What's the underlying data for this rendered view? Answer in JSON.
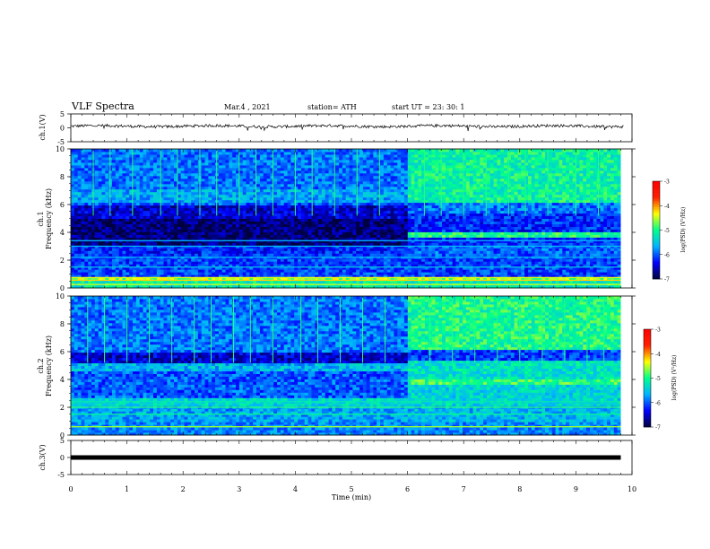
{
  "header": {
    "title": "VLF Spectra",
    "date": "Mar.4 , 2021",
    "station": "station= ATH",
    "start": "start UT = 23: 30: 1"
  },
  "chart_data": [
    {
      "type": "line",
      "panel": "ch.1 waveform",
      "ylabel": "ch.1(V)",
      "yticks": [
        "5",
        "0",
        "-5"
      ],
      "ylim": [
        -5,
        5
      ],
      "xlim": [
        0,
        10
      ],
      "baseline": 0.6,
      "noise_amplitude": 0.5
    },
    {
      "type": "heatmap",
      "panel": "ch.1 spectrogram",
      "ylabel_line1": "ch.1",
      "ylabel_line2": "Frequency (kHz)",
      "yticks": [
        "0",
        "2",
        "4",
        "6",
        "8",
        "10"
      ],
      "ylim": [
        0,
        10
      ],
      "xlim": [
        0,
        9.8
      ],
      "colorbar_label": "log(PSD) (V²/Hz)",
      "colorbar_ticks": [
        "-3",
        "-4",
        "-5",
        "-6",
        "-7"
      ],
      "clim": [
        -7,
        -3
      ],
      "bands_before_6min": [
        {
          "f0": 0.0,
          "f1": 0.5,
          "v": -5.2
        },
        {
          "f0": 0.5,
          "f1": 0.8,
          "v": -4.6
        },
        {
          "f0": 0.8,
          "f1": 2.3,
          "v": -6.1
        },
        {
          "f0": 2.3,
          "f1": 3.1,
          "v": -6.2
        },
        {
          "f0": 3.1,
          "f1": 5.0,
          "v": -6.8
        },
        {
          "f0": 5.0,
          "f1": 5.9,
          "v": -6.5
        },
        {
          "f0": 5.9,
          "f1": 6.2,
          "v": -6.0
        },
        {
          "f0": 6.2,
          "f1": 7.2,
          "v": -5.7
        },
        {
          "f0": 7.2,
          "f1": 10.0,
          "v": -5.9
        }
      ],
      "bands_after_6min": [
        {
          "f0": 0.0,
          "f1": 0.5,
          "v": -5.2
        },
        {
          "f0": 0.5,
          "f1": 0.8,
          "v": -4.6
        },
        {
          "f0": 0.8,
          "f1": 2.3,
          "v": -6.1
        },
        {
          "f0": 2.3,
          "f1": 3.1,
          "v": -6.0
        },
        {
          "f0": 3.1,
          "f1": 3.6,
          "v": -6.2
        },
        {
          "f0": 3.6,
          "f1": 4.0,
          "v": -5.0
        },
        {
          "f0": 4.0,
          "f1": 5.4,
          "v": -6.2
        },
        {
          "f0": 5.4,
          "f1": 6.2,
          "v": -5.9
        },
        {
          "f0": 6.2,
          "f1": 10.0,
          "v": -5.1
        }
      ],
      "lines_khz": [
        {
          "f": 0.25,
          "v": -4.4
        },
        {
          "f": 0.55,
          "v": -4.2
        },
        {
          "f": 0.75,
          "v": -4.4
        },
        {
          "f": 1.5,
          "v": -5.5
        },
        {
          "f": 2.2,
          "v": -5.6
        },
        {
          "f": 3.0,
          "v": -5.6
        },
        {
          "f": 3.4,
          "v": -5.7
        }
      ],
      "spike_times_min": [
        0.4,
        0.7,
        1.1,
        1.6,
        1.9,
        2.3,
        2.6,
        3.0,
        3.3,
        3.6,
        4.0,
        4.3,
        4.7,
        5.1,
        5.5,
        6.3,
        6.6,
        7.0,
        7.4,
        7.8,
        8.1,
        8.5,
        9.0,
        9.4
      ]
    },
    {
      "type": "heatmap",
      "panel": "ch.2 spectrogram",
      "ylabel_line1": "ch.2",
      "ylabel_line2": "Frequency (kHz)",
      "yticks": [
        "0",
        "2",
        "4",
        "6",
        "8",
        "10"
      ],
      "ylim": [
        0,
        10
      ],
      "xlim": [
        0,
        9.8
      ],
      "colorbar_label": "log(PSD) (V²/Hz)",
      "colorbar_ticks": [
        "-3",
        "-4",
        "-5",
        "-6",
        "-7"
      ],
      "clim": [
        -7,
        -3
      ],
      "bands_before_6min": [
        {
          "f0": 0.0,
          "f1": 0.9,
          "v": -5.8
        },
        {
          "f0": 0.9,
          "f1": 2.2,
          "v": -5.7
        },
        {
          "f0": 2.2,
          "f1": 2.6,
          "v": -5.4
        },
        {
          "f0": 2.6,
          "f1": 4.6,
          "v": -6.0
        },
        {
          "f0": 4.6,
          "f1": 5.2,
          "v": -5.6
        },
        {
          "f0": 5.2,
          "f1": 6.0,
          "v": -6.5
        },
        {
          "f0": 6.0,
          "f1": 10.0,
          "v": -5.9
        }
      ],
      "bands_after_6min": [
        {
          "f0": 0.0,
          "f1": 0.9,
          "v": -5.8
        },
        {
          "f0": 0.9,
          "f1": 2.2,
          "v": -5.6
        },
        {
          "f0": 2.2,
          "f1": 2.6,
          "v": -5.4
        },
        {
          "f0": 2.6,
          "f1": 3.7,
          "v": -5.4
        },
        {
          "f0": 3.7,
          "f1": 4.1,
          "v": -4.9
        },
        {
          "f0": 4.1,
          "f1": 5.3,
          "v": -5.3
        },
        {
          "f0": 5.3,
          "f1": 6.1,
          "v": -6.1
        },
        {
          "f0": 6.1,
          "f1": 10.0,
          "v": -5.0
        }
      ],
      "lines_khz": [
        {
          "f": 0.6,
          "v": -4.6
        },
        {
          "f": 1.5,
          "v": -5.0
        },
        {
          "f": 2.0,
          "v": -4.9
        },
        {
          "f": 2.4,
          "v": -5.2
        }
      ],
      "spike_times_min": [
        0.3,
        0.6,
        1.0,
        1.4,
        1.8,
        2.2,
        2.5,
        2.9,
        3.2,
        3.6,
        4.1,
        4.4,
        4.8,
        5.2,
        5.6,
        6.4,
        6.8,
        7.2,
        7.6,
        8.0,
        8.4,
        8.8,
        9.2,
        9.5
      ]
    },
    {
      "type": "line",
      "panel": "ch.3 waveform",
      "ylabel": "ch.3(V)",
      "yticks": [
        "5",
        "0",
        "-5"
      ],
      "ylim": [
        -5,
        5
      ],
      "xlim": [
        0,
        10
      ],
      "baseline": 0.0,
      "noise_amplitude": 0.0
    }
  ],
  "xaxis": {
    "label": "Time (min)",
    "ticks": [
      "0",
      "1",
      "2",
      "3",
      "4",
      "5",
      "6",
      "7",
      "8",
      "9",
      "10"
    ],
    "xlim": [
      0,
      10
    ]
  },
  "colors": {
    "colormap": [
      "#00003c",
      "#0000ff",
      "#00b4ff",
      "#00ff8c",
      "#ffff00",
      "#ff2000",
      "#ff0000"
    ]
  }
}
